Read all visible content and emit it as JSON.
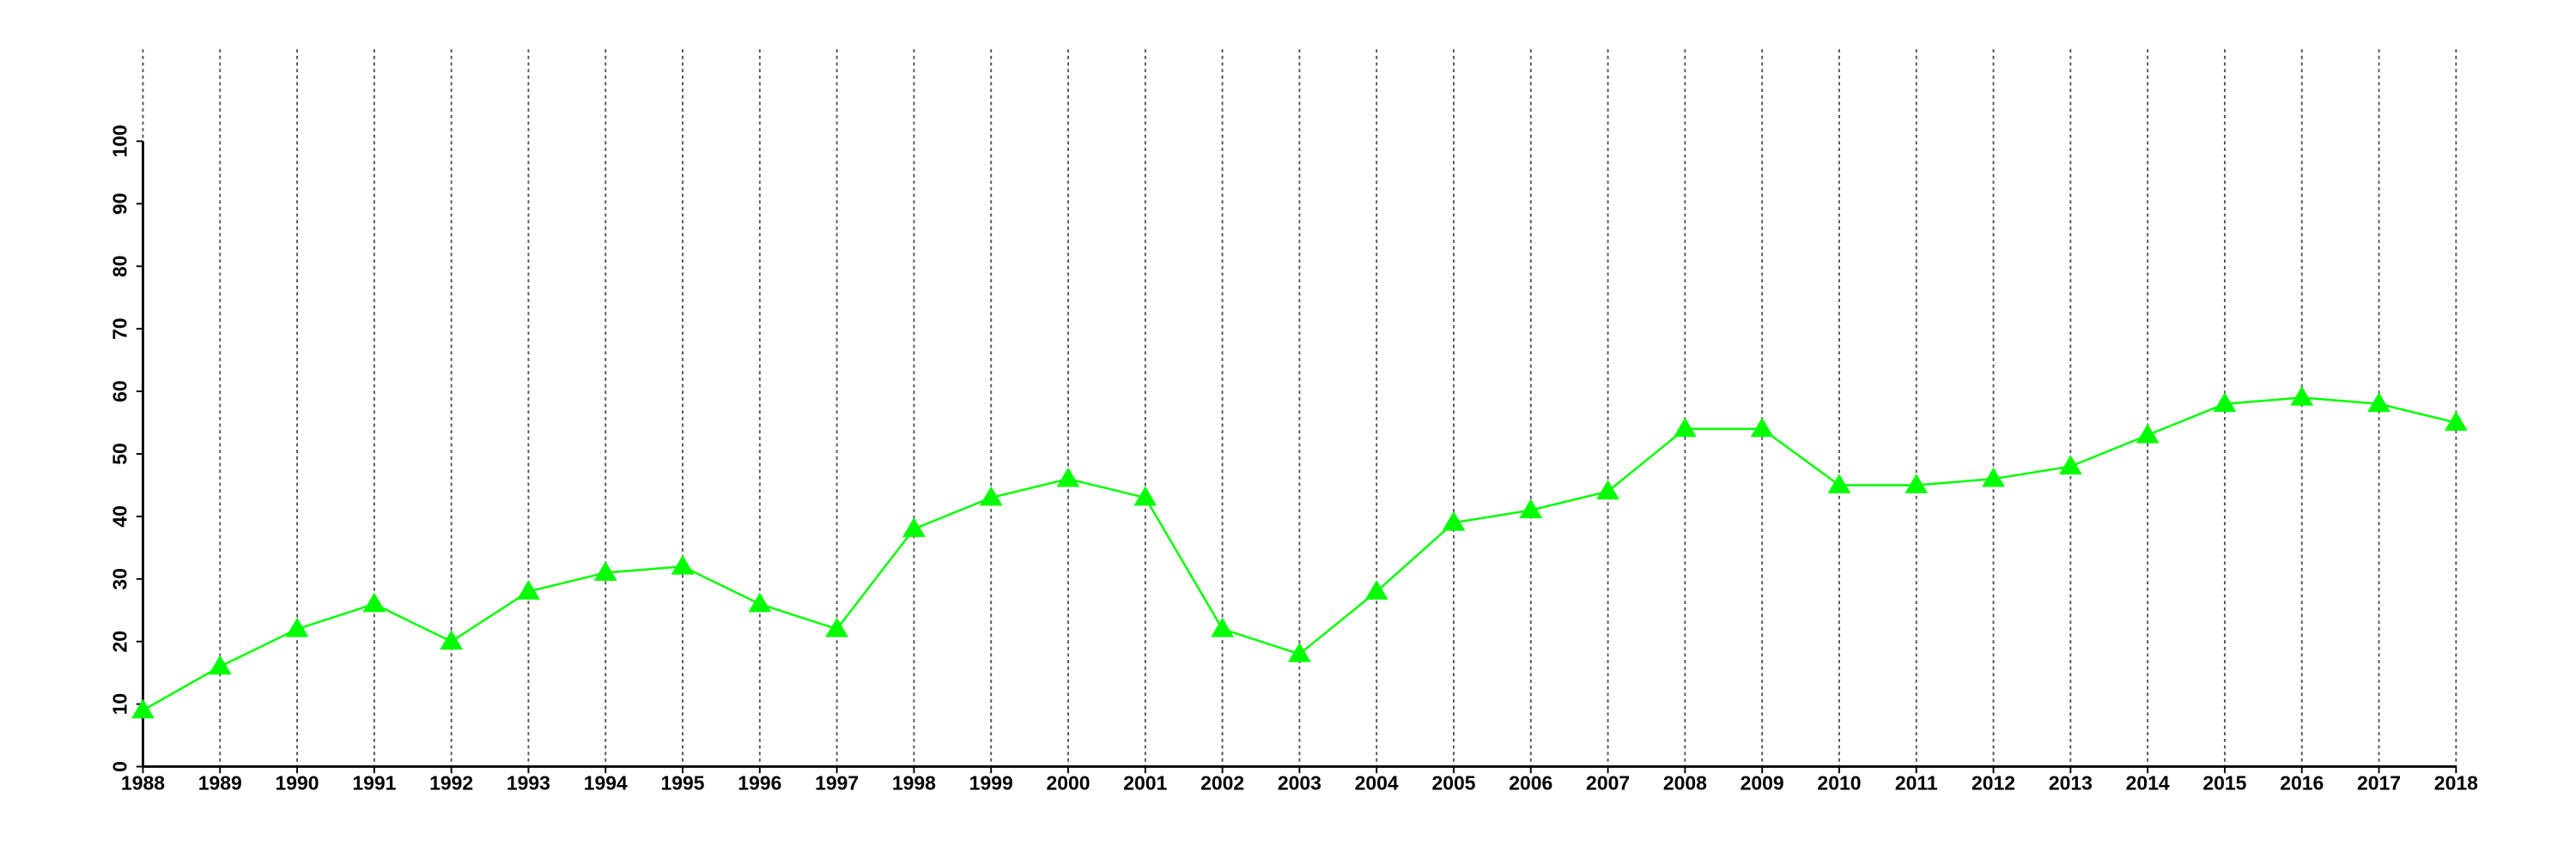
{
  "chart_data": {
    "type": "line",
    "categories": [
      "1988",
      "1989",
      "1990",
      "1991",
      "1992",
      "1993",
      "1994",
      "1995",
      "1996",
      "1997",
      "1998",
      "1999",
      "2000",
      "2001",
      "2002",
      "2003",
      "2004",
      "2005",
      "2006",
      "2007",
      "2008",
      "2009",
      "2010",
      "2011",
      "2012",
      "2013",
      "2014",
      "2015",
      "2016",
      "2017",
      "2018"
    ],
    "series": [
      {
        "color": "#00ff00",
        "values": [
          9,
          16,
          22,
          26,
          20,
          28,
          31,
          32,
          26,
          22,
          38,
          43,
          46,
          43,
          22,
          18,
          28,
          39,
          41,
          44,
          54,
          54,
          45,
          45,
          46,
          48,
          53,
          58,
          59,
          58,
          55
        ]
      }
    ],
    "ylim": [
      0,
      100
    ],
    "yticks": [
      0,
      10,
      20,
      30,
      40,
      50,
      60,
      70,
      80,
      90,
      100
    ],
    "grid": "x",
    "marker": "triangle"
  }
}
